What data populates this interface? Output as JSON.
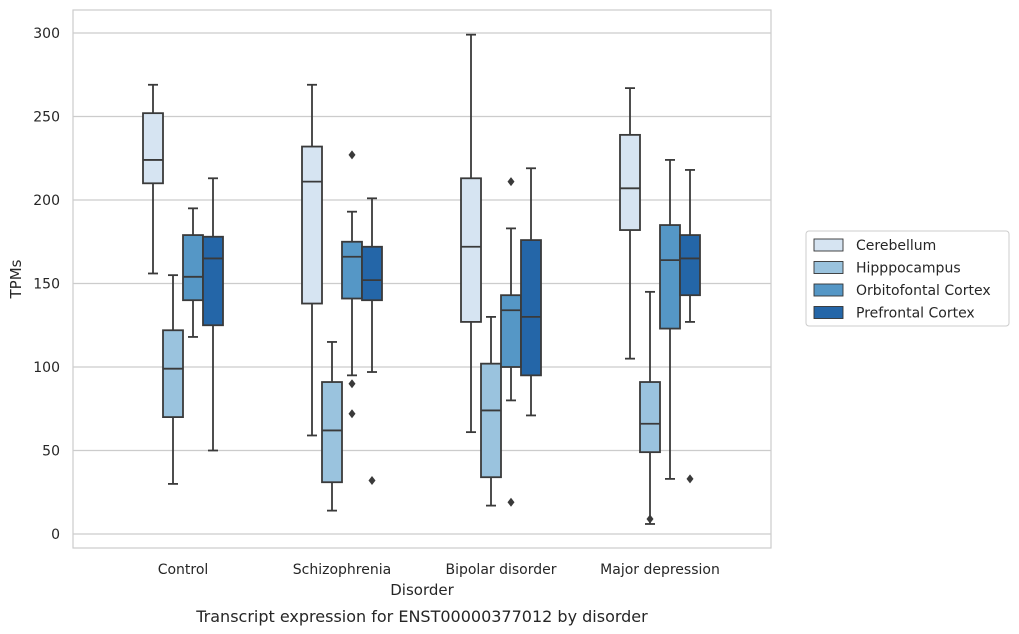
{
  "chart_data": {
    "type": "box",
    "title": "",
    "caption": "Transcript expression for ENST00000377012 by disorder",
    "xlabel": "Disorder",
    "ylabel": "TPMs",
    "ylim": [
      -8,
      315
    ],
    "yticks": [
      0,
      50,
      100,
      150,
      200,
      250,
      300
    ],
    "grid": "horizontal",
    "legend_position": "right",
    "categories": [
      "Control",
      "Schizophrenia",
      "Bipolar disorder",
      "Major depression"
    ],
    "series": [
      {
        "name": "Cerebellum",
        "color": "#d6e4f2",
        "boxes": [
          {
            "whisker_low": 156,
            "q1": 210,
            "median": 224,
            "q3": 252,
            "whisker_high": 269,
            "outliers": []
          },
          {
            "whisker_low": 59,
            "q1": 138,
            "median": 211,
            "q3": 232,
            "whisker_high": 269,
            "outliers": []
          },
          {
            "whisker_low": 61,
            "q1": 127,
            "median": 172,
            "q3": 213,
            "whisker_high": 299,
            "outliers": []
          },
          {
            "whisker_low": 105,
            "q1": 182,
            "median": 207,
            "q3": 239,
            "whisker_high": 267,
            "outliers": []
          }
        ]
      },
      {
        "name": "Hipppocampus",
        "color": "#9ac3de",
        "boxes": [
          {
            "whisker_low": 30,
            "q1": 70,
            "median": 99,
            "q3": 122,
            "whisker_high": 155,
            "outliers": []
          },
          {
            "whisker_low": 14,
            "q1": 31,
            "median": 62,
            "q3": 91,
            "whisker_high": 115,
            "outliers": []
          },
          {
            "whisker_low": 17,
            "q1": 34,
            "median": 74,
            "q3": 102,
            "whisker_high": 130,
            "outliers": []
          },
          {
            "whisker_low": 6,
            "q1": 49,
            "median": 66,
            "q3": 91,
            "whisker_high": 145,
            "outliers": [
              9
            ]
          }
        ]
      },
      {
        "name": "Orbitofontal Cortex",
        "color": "#5597c6",
        "boxes": [
          {
            "whisker_low": 118,
            "q1": 140,
            "median": 154,
            "q3": 179,
            "whisker_high": 195,
            "outliers": []
          },
          {
            "whisker_low": 95,
            "q1": 141,
            "median": 166,
            "q3": 175,
            "whisker_high": 193,
            "outliers": [
              227,
              90,
              72
            ]
          },
          {
            "whisker_low": 80,
            "q1": 100,
            "median": 134,
            "q3": 143,
            "whisker_high": 183,
            "outliers": [
              211,
              19
            ]
          },
          {
            "whisker_low": 33,
            "q1": 123,
            "median": 164,
            "q3": 185,
            "whisker_high": 224,
            "outliers": []
          }
        ]
      },
      {
        "name": "Prefrontal Cortex",
        "color": "#2466a8",
        "boxes": [
          {
            "whisker_low": 50,
            "q1": 125,
            "median": 165,
            "q3": 178,
            "whisker_high": 213,
            "outliers": []
          },
          {
            "whisker_low": 97,
            "q1": 140,
            "median": 152,
            "q3": 172,
            "whisker_high": 201,
            "outliers": [
              32
            ]
          },
          {
            "whisker_low": 71,
            "q1": 95,
            "median": 130,
            "q3": 176,
            "whisker_high": 219,
            "outliers": []
          },
          {
            "whisker_low": 127,
            "q1": 143,
            "median": 165,
            "q3": 179,
            "whisker_high": 218,
            "outliers": [
              33
            ]
          }
        ]
      }
    ]
  }
}
